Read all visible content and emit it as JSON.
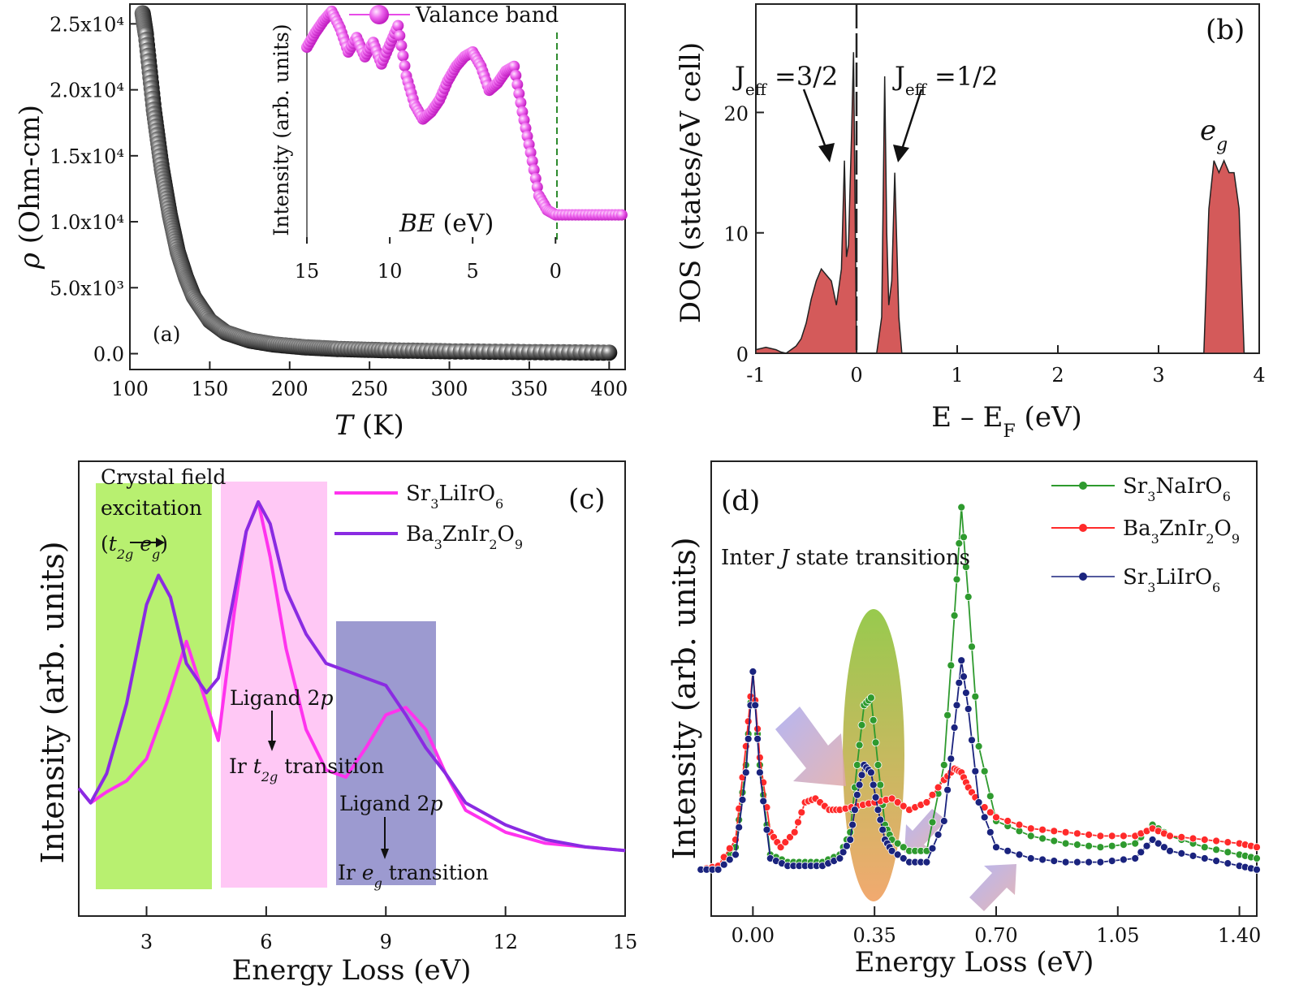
{
  "chart_data": [
    {
      "panel": "(a)",
      "type": "scatter",
      "xlabel": "T (K)",
      "ylabel": "ρ (Ohm-cm)",
      "xlim": [
        100,
        410
      ],
      "ylim": [
        -1200,
        26500
      ],
      "xticks": [
        "100",
        "150",
        "200",
        "250",
        "300",
        "350",
        "400"
      ],
      "yticks": [
        "0.0",
        "5.0x10³",
        "1.0x10⁴",
        "1.5x10⁴",
        "2.0x10⁴",
        "2.5x10⁴"
      ],
      "colors": {
        "marker": "#1a1a1a"
      },
      "x": [
        108,
        110,
        115,
        120,
        125,
        130,
        135,
        140,
        150,
        160,
        175,
        190,
        210,
        230,
        260,
        300,
        350,
        400
      ],
      "values": [
        25800,
        24200,
        18500,
        14000,
        10500,
        7700,
        5800,
        4300,
        2500,
        1600,
        1000,
        700,
        480,
        360,
        260,
        180,
        120,
        80
      ],
      "inset": {
        "type": "scatter",
        "xlabel": "BE (eV)",
        "ylabel": "Intensity (arb. units)",
        "legend": "Valance band",
        "xlim": [
          15,
          -4.2
        ],
        "xticks": [
          "15",
          "10",
          "5",
          "0"
        ],
        "marker_line": 0,
        "colors": {
          "marker": "#e84be8",
          "dashed": "#2e8b2e"
        },
        "x": [
          15,
          14.5,
          14,
          13.5,
          13,
          12.5,
          12,
          11.5,
          11,
          10.5,
          10,
          9.5,
          9,
          8.5,
          8,
          7.5,
          7,
          6.5,
          6,
          5.5,
          5,
          4.5,
          4,
          3.5,
          3,
          2.5,
          2,
          1.5,
          1,
          0.5,
          0,
          -1,
          -2,
          -3,
          -4
        ],
        "values": [
          0.82,
          0.88,
          0.93,
          0.97,
          0.9,
          0.8,
          0.86,
          0.78,
          0.84,
          0.75,
          0.83,
          0.91,
          0.7,
          0.58,
          0.52,
          0.55,
          0.6,
          0.68,
          0.74,
          0.78,
          0.8,
          0.74,
          0.64,
          0.67,
          0.72,
          0.74,
          0.55,
          0.38,
          0.2,
          0.14,
          0.12,
          0.12,
          0.12,
          0.12,
          0.12
        ]
      }
    },
    {
      "panel": "(b)",
      "type": "area",
      "xlabel": "E – E_F (eV)",
      "ylabel": "DOS (states/eV cell)",
      "xlim": [
        -1,
        4
      ],
      "ylim": [
        0,
        29
      ],
      "xticks": [
        "-1",
        "0",
        "1",
        "2",
        "3",
        "4"
      ],
      "yticks": [
        "0",
        "10",
        "20"
      ],
      "colors": {
        "fill": "#d45a5a"
      },
      "annotations": [
        "J_eff = 3/2",
        "J_eff = 1/2",
        "e_g"
      ],
      "segments": [
        {
          "x": [
            -1,
            -0.9,
            -0.8,
            -0.75,
            -0.7,
            -0.65,
            -0.6,
            -0.55,
            -0.5,
            -0.45,
            -0.4,
            -0.35,
            -0.3,
            -0.25,
            -0.2,
            -0.15,
            -0.12,
            -0.1,
            -0.08,
            -0.05,
            -0.03,
            0
          ],
          "values": [
            0.3,
            0.5,
            0.3,
            0.1,
            0,
            0.3,
            0.6,
            1.2,
            2.5,
            4.5,
            6,
            7,
            6.5,
            6,
            4,
            7,
            16,
            8,
            9,
            18,
            25,
            0
          ]
        },
        {
          "x": [
            0.2,
            0.25,
            0.28,
            0.3,
            0.32,
            0.35,
            0.38,
            0.42,
            0.45
          ],
          "values": [
            0,
            3,
            23,
            10,
            4,
            6,
            15,
            3,
            0
          ]
        },
        {
          "x": [
            3.45,
            3.5,
            3.55,
            3.6,
            3.65,
            3.7,
            3.75,
            3.8,
            3.85
          ],
          "values": [
            0,
            12,
            16,
            15,
            16,
            15,
            15,
            12,
            0
          ]
        }
      ]
    },
    {
      "panel": "(c)",
      "type": "line",
      "xlabel": "Energy Loss (eV)",
      "ylabel": "Intensity (arb. units)",
      "xlim": [
        1.3,
        15
      ],
      "xticks": [
        "3",
        "6",
        "9",
        "12",
        "15"
      ],
      "legend": [
        "Sr₃LiIrO₆",
        "Ba₃ZnIr₂O₉"
      ],
      "annotations": [
        "Crystal field excitation (t2g → eg)",
        "Ligand 2p → Ir t2g transition",
        "Ligand 2p → Ir eg transition"
      ],
      "colors": {
        "Sr₃LiIrO₆": "#ff33ee",
        "Ba₃ZnIr₂O₉": "#8a2be2",
        "band1": "#b8f070",
        "band2": "#ffc8f5",
        "band3": "#9c9ad0"
      },
      "series": [
        {
          "name": "Sr₃LiIrO₆",
          "x": [
            1.3,
            1.6,
            2,
            2.5,
            3,
            3.5,
            4,
            4.5,
            4.8,
            5.2,
            5.5,
            5.8,
            6.1,
            6.5,
            7,
            7.5,
            8,
            8.5,
            9,
            9.5,
            10,
            10.5,
            11,
            12,
            13,
            14,
            15
          ],
          "values": [
            0.22,
            0.18,
            0.21,
            0.24,
            0.3,
            0.45,
            0.62,
            0.45,
            0.35,
            0.7,
            0.92,
            1.0,
            0.85,
            0.6,
            0.38,
            0.27,
            0.25,
            0.33,
            0.42,
            0.44,
            0.38,
            0.26,
            0.16,
            0.1,
            0.07,
            0.06,
            0.05
          ]
        },
        {
          "name": "Ba₃ZnIr₂O₉",
          "x": [
            1.3,
            1.6,
            2,
            2.5,
            3,
            3.3,
            3.6,
            4,
            4.5,
            4.8,
            5.2,
            5.5,
            5.8,
            6.1,
            6.5,
            7,
            7.5,
            8,
            8.5,
            9,
            9.5,
            10,
            10.5,
            11,
            12,
            13,
            14,
            15
          ],
          "values": [
            0.22,
            0.18,
            0.26,
            0.45,
            0.72,
            0.8,
            0.74,
            0.56,
            0.48,
            0.52,
            0.75,
            0.92,
            1.0,
            0.94,
            0.76,
            0.64,
            0.56,
            0.54,
            0.52,
            0.5,
            0.42,
            0.33,
            0.26,
            0.18,
            0.12,
            0.08,
            0.06,
            0.05
          ]
        }
      ]
    },
    {
      "panel": "(d)",
      "type": "line",
      "xlabel": "Energy Loss (eV)",
      "ylabel": "Intensity (arb. units)",
      "xlim": [
        -0.12,
        1.45
      ],
      "xticks": [
        "0.00",
        "0.35",
        "0.70",
        "1.05",
        "1.40"
      ],
      "legend": [
        "Sr₃NaIrO₆",
        "Ba₃ZnIr₂O₉",
        "Sr₃LiIrO₆"
      ],
      "annotation": "Inter J state transitions",
      "colors": {
        "Sr₃NaIrO₆": "#2e9a2e",
        "Ba₃ZnIr₂O₉": "#ff2a2a",
        "Sr₃LiIrO₆": "#1a237e"
      },
      "series": [
        {
          "name": "Sr₃NaIrO₆",
          "x": [
            -0.15,
            -0.1,
            -0.05,
            -0.02,
            0,
            0.02,
            0.05,
            0.1,
            0.15,
            0.2,
            0.25,
            0.28,
            0.3,
            0.32,
            0.34,
            0.36,
            0.38,
            0.4,
            0.45,
            0.5,
            0.55,
            0.58,
            0.6,
            0.62,
            0.65,
            0.7,
            0.8,
            0.9,
            1.0,
            1.1,
            1.15,
            1.2,
            1.3,
            1.4,
            1.45
          ],
          "values": [
            0.02,
            0.03,
            0.08,
            0.3,
            0.55,
            0.3,
            0.06,
            0.04,
            0.04,
            0.04,
            0.06,
            0.12,
            0.3,
            0.46,
            0.48,
            0.3,
            0.14,
            0.1,
            0.07,
            0.07,
            0.3,
            0.7,
            0.99,
            0.75,
            0.35,
            0.15,
            0.11,
            0.09,
            0.08,
            0.09,
            0.14,
            0.11,
            0.08,
            0.06,
            0.05
          ]
        },
        {
          "name": "Ba₃ZnIr₂O₉",
          "x": [
            -0.15,
            -0.1,
            -0.05,
            -0.02,
            0,
            0.02,
            0.05,
            0.08,
            0.12,
            0.15,
            0.18,
            0.22,
            0.25,
            0.3,
            0.35,
            0.4,
            0.45,
            0.5,
            0.55,
            0.58,
            0.6,
            0.62,
            0.65,
            0.7,
            0.8,
            0.9,
            1.0,
            1.1,
            1.15,
            1.2,
            1.3,
            1.4,
            1.45
          ],
          "values": [
            0.02,
            0.03,
            0.1,
            0.35,
            0.55,
            0.32,
            0.12,
            0.08,
            0.12,
            0.2,
            0.21,
            0.18,
            0.18,
            0.19,
            0.2,
            0.21,
            0.18,
            0.2,
            0.26,
            0.29,
            0.28,
            0.24,
            0.2,
            0.16,
            0.13,
            0.12,
            0.11,
            0.11,
            0.13,
            0.11,
            0.1,
            0.09,
            0.08
          ]
        },
        {
          "name": "Sr₃LiIrO₆",
          "x": [
            -0.15,
            -0.1,
            -0.05,
            -0.02,
            0,
            0.02,
            0.05,
            0.1,
            0.15,
            0.2,
            0.25,
            0.28,
            0.3,
            0.32,
            0.34,
            0.36,
            0.38,
            0.4,
            0.45,
            0.5,
            0.55,
            0.58,
            0.6,
            0.62,
            0.65,
            0.7,
            0.8,
            0.9,
            1.0,
            1.1,
            1.15,
            1.2,
            1.3,
            1.4,
            1.45
          ],
          "values": [
            0.02,
            0.02,
            0.06,
            0.28,
            0.55,
            0.28,
            0.05,
            0.03,
            0.03,
            0.03,
            0.05,
            0.1,
            0.22,
            0.3,
            0.28,
            0.18,
            0.1,
            0.07,
            0.04,
            0.04,
            0.15,
            0.4,
            0.58,
            0.45,
            0.2,
            0.08,
            0.05,
            0.04,
            0.04,
            0.05,
            0.1,
            0.07,
            0.05,
            0.03,
            0.02
          ]
        }
      ]
    }
  ]
}
